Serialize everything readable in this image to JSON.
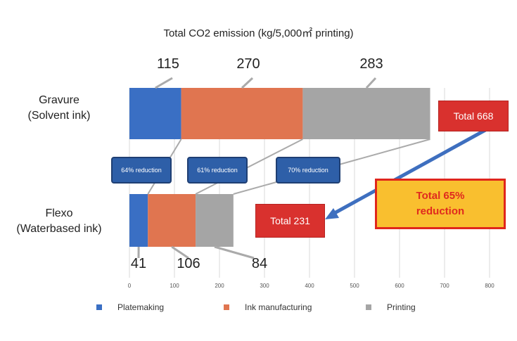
{
  "chart_data": {
    "type": "bar",
    "orientation": "horizontal",
    "stacked": true,
    "title": "Total CO2 emission (kg/5,000㎡ printing)",
    "categories": [
      "Gravure\n(Solvent ink)",
      "Flexo\n(Waterbased ink)"
    ],
    "series": [
      {
        "name": "Platemaking",
        "values": [
          115,
          41
        ],
        "color": "#3a6fc4"
      },
      {
        "name": "Ink manufacturing",
        "values": [
          270,
          106
        ],
        "color": "#e07550"
      },
      {
        "name": "Printing",
        "values": [
          283,
          84
        ],
        "color": "#a5a5a5"
      }
    ],
    "xlim": [
      0,
      800
    ],
    "xticks": [
      "0",
      "100",
      "200",
      "300",
      "400",
      "500",
      "600",
      "700",
      "800"
    ],
    "grid": true,
    "legend": "bottom"
  },
  "annotations": {
    "gravure_total": "Total 668",
    "flexo_total": "Total 231",
    "overall_reduction": "Total 65%\nreduction",
    "reductions": [
      "64% reduction",
      "61% reduction",
      "70% reduction"
    ]
  },
  "colors": {
    "total_box": "#d9312e",
    "reduction_box": "#2e5fa8",
    "highlight_fill": "#f9bf2f",
    "highlight_border": "#e0261c"
  }
}
